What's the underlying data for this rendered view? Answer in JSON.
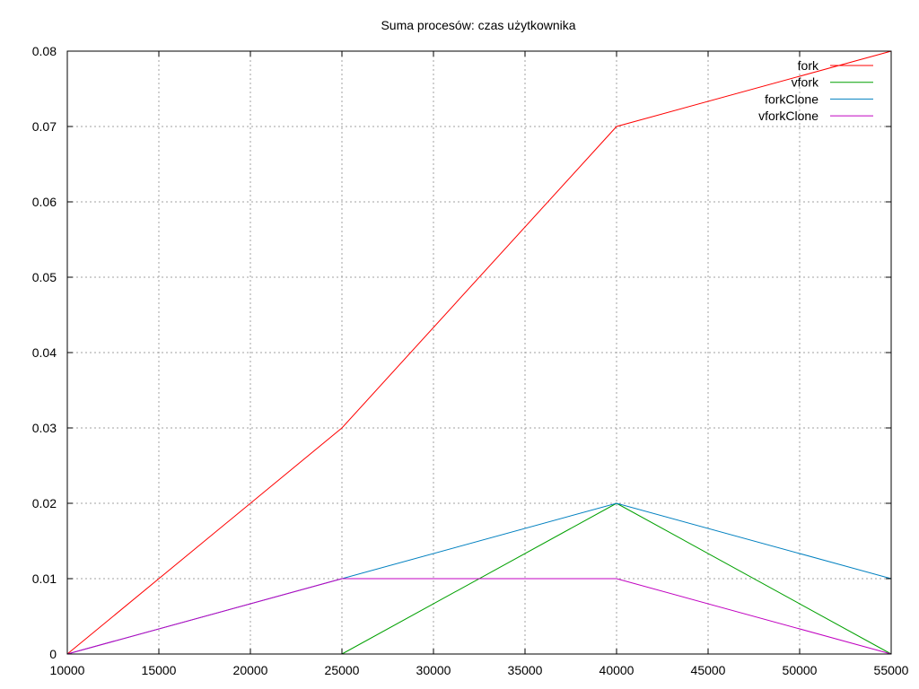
{
  "chart_data": {
    "type": "line",
    "title": "Suma procesów: czas użytkownika",
    "xlabel": "",
    "ylabel": "",
    "x": [
      10000,
      25000,
      40000,
      55000
    ],
    "xlim": [
      10000,
      55000
    ],
    "ylim": [
      0,
      0.08
    ],
    "x_ticks": [
      "10000",
      "15000",
      "20000",
      "25000",
      "30000",
      "35000",
      "40000",
      "45000",
      "50000",
      "55000"
    ],
    "y_ticks": [
      "0",
      "0.01",
      "0.02",
      "0.03",
      "0.04",
      "0.05",
      "0.06",
      "0.07",
      "0.08"
    ],
    "grid": true,
    "legend_position": "top-right",
    "series": [
      {
        "name": "fork",
        "color": "#ff0000",
        "values": [
          0,
          0.03,
          0.07,
          0.08
        ]
      },
      {
        "name": "vfork",
        "color": "#00a000",
        "values": [
          null,
          0,
          0.02,
          0
        ]
      },
      {
        "name": "forkClone",
        "color": "#0080c0",
        "values": [
          0,
          0.01,
          0.02,
          0.01
        ]
      },
      {
        "name": "vforkClone",
        "color": "#c000c0",
        "values": [
          0,
          0.01,
          0.01,
          0
        ]
      }
    ]
  }
}
